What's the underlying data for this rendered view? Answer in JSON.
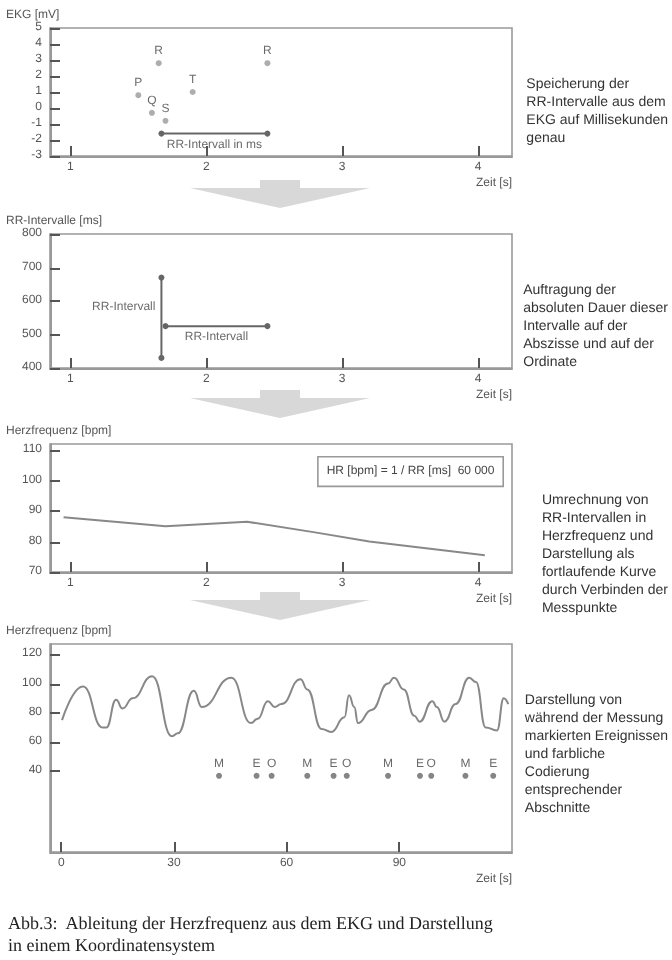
{
  "chart_data": [
    {
      "type": "scatter",
      "ylabel": "EKG [mV]",
      "xlabel": "Zeit [s]",
      "xlim": [
        0.85,
        4.25
      ],
      "xticks": [
        1,
        2,
        3,
        4
      ],
      "ylim": [
        -3,
        5
      ],
      "yticks": [
        -3,
        -2,
        -1,
        0,
        1,
        2,
        3,
        4,
        5
      ],
      "grid": false,
      "marker": "circle",
      "series": [
        {
          "x": [
            1.5,
            1.6,
            1.65,
            1.7,
            1.9,
            2.45
          ],
          "values": [
            0.8,
            -0.3,
            2.8,
            -0.8,
            1,
            2.8
          ],
          "value_labels": [
            "P",
            "Q",
            "R",
            "S",
            "T",
            "R"
          ],
          "color": "#999999"
        },
        {
          "type": "line",
          "x": [
            1.67,
            2.45
          ],
          "values": [
            -1.6,
            -1.6
          ],
          "color": "#666666"
        }
      ],
      "annotations": [
        "Speicherung der RR-Intervalle aus dem EKG auf Millisekunden genau",
        {
          "text": "RR-Intervall in ms",
          "x": 2.06,
          "y": -1.6
        }
      ]
    },
    {
      "type": "line",
      "ylabel": "RR-Intervalle [ms]",
      "xlabel": "Zeit [s]",
      "xlim": [
        0.85,
        4.25
      ],
      "xticks": [
        1,
        2,
        3,
        4
      ],
      "ylim": [
        400,
        800
      ],
      "yticks": [
        400,
        500,
        600,
        700,
        800
      ],
      "grid": false,
      "marker": "circle",
      "series": [
        {
          "x": [
            1.67,
            1.67
          ],
          "values": [
            430,
            670
          ],
          "color": "#666666"
        },
        {
          "x": [
            1.7,
            2.45
          ],
          "values": [
            525,
            525
          ],
          "color": "#666666"
        }
      ],
      "annotations": [
        "Auftragung der absoluten Dauer dieser Intervalle auf der Abszisse und auf der Ordinate",
        {
          "text": "RR-Intervall",
          "x": 1.67,
          "y": 580
        },
        {
          "text": "RR-Intervall",
          "x": 2.075,
          "y": 525
        }
      ]
    },
    {
      "type": "line",
      "ylabel": "Herzfrequenz [bpm]",
      "xlabel": "Zeit [s]",
      "xlim": [
        0.85,
        4.25
      ],
      "xticks": [
        1,
        2,
        3,
        4
      ],
      "ylim": [
        70,
        112
      ],
      "yticks": [
        70,
        80,
        90,
        100,
        110
      ],
      "grid": false,
      "series": [
        {
          "x": [
            0.95,
            1.7,
            2.3,
            2.8,
            3.2,
            4.05
          ],
          "values": [
            88,
            85,
            86.5,
            83,
            80,
            75.5
          ],
          "color": "#888888"
        }
      ],
      "annotations": [
        "Umrechnung von RR-Intervallen in Herzfrequenz und Darstellung als fortlaufende Kurve durch Verbinden der Messpunkte",
        "HR [bpm] = 1 / RR [ms]  60 000"
      ]
    },
    {
      "type": "line",
      "ylabel": "Herzfrequenz [bpm]",
      "xlabel": "Zeit [s]",
      "xlim": [
        -3,
        120
      ],
      "xticks": [
        0,
        30,
        60,
        90
      ],
      "ylim": [
        -15,
        127
      ],
      "yticks": [
        40,
        60,
        80,
        100,
        120
      ],
      "grid": false,
      "series": [
        {
          "x": [
            0.2,
            5.8,
            11,
            12,
            14.6,
            16.3,
            19,
            24.2,
            29.5,
            31,
            35.3,
            37.4,
            45.3,
            50.5,
            52.3,
            55,
            56.8,
            58.6,
            63.7,
            65.5,
            69.3,
            71.9,
            75.4,
            76.6,
            78,
            79,
            82.6,
            87,
            88.6,
            91.2,
            94,
            95.4,
            98.8,
            100,
            102,
            105,
            108.6,
            110.4,
            113,
            116,
            117.8,
            119
          ],
          "values": [
            75,
            98,
            70,
            70,
            89,
            83,
            90,
            105,
            64,
            66,
            95,
            84,
            104,
            73,
            76,
            88,
            84,
            86,
            103,
            96,
            69,
            67,
            77,
            92,
            84,
            73,
            82,
            100,
            104,
            96,
            78,
            74,
            88,
            84,
            74,
            86,
            104,
            101,
            70,
            68,
            90,
            86
          ],
          "color": "#888888"
        },
        {
          "type": "scatter",
          "x": [
            42,
            52,
            56,
            65.5,
            72.5,
            76,
            87,
            95.5,
            98.5,
            107.6,
            115
          ],
          "values": [
            37,
            37,
            37,
            37,
            37,
            37,
            37,
            37,
            37,
            37,
            37
          ],
          "value_labels": [
            "M",
            "E",
            "O",
            "M",
            "E",
            "O",
            "M",
            "E",
            "O",
            "M",
            "E"
          ],
          "color": "#666666"
        }
      ],
      "annotations": [
        "Darstellung von während der Messung markierten Ereignissen und farbliche Codierung entsprechender Abschnitte",
        "Abb.3:  Ableitung der Herzfrequenz aus dem EKG und Darstellung in einem Koordinatensystem"
      ]
    }
  ]
}
